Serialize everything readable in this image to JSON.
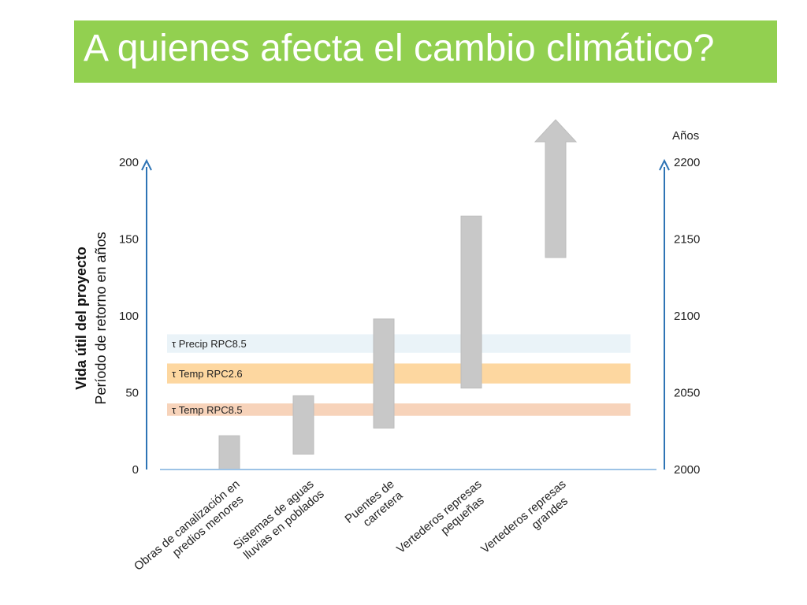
{
  "title": "A quienes afecta el cambio climático?",
  "colors": {
    "title_bg": "#92d050",
    "axis": "#2e74b5",
    "bar": "#c8c8c8",
    "baseline": "#9dc3e6"
  },
  "chart_data": {
    "type": "bar",
    "left_axis": {
      "title_bold": "Vida útil del proyecto",
      "title": "Período de retorno en años",
      "range": [
        0,
        200
      ],
      "ticks": [
        0,
        50,
        100,
        150,
        200
      ]
    },
    "right_axis": {
      "title": "Años",
      "range": [
        2000,
        2200
      ],
      "ticks": [
        2000,
        2050,
        2100,
        2150,
        2200
      ]
    },
    "bands": [
      {
        "label": "τ Precip RPC8.5",
        "from": 76,
        "to": 88,
        "color": "#eaf3f8"
      },
      {
        "label": "τ Temp RPC2.6",
        "from": 56,
        "to": 69,
        "color": "#fdd7a0"
      },
      {
        "label": "τ Temp RPC8.5",
        "from": 35,
        "to": 43,
        "color": "#f7d3ba"
      }
    ],
    "categories": [
      {
        "label_lines": [
          "Obras de canalización en",
          "predios menores"
        ],
        "low": 0,
        "high": 22,
        "open_ended": false
      },
      {
        "label_lines": [
          "Sistemas de aguas",
          "lluvias en poblados"
        ],
        "low": 10,
        "high": 48,
        "open_ended": false
      },
      {
        "label_lines": [
          "Puentes de",
          "carretera"
        ],
        "low": 27,
        "high": 98,
        "open_ended": false
      },
      {
        "label_lines": [
          "Vertederos represas",
          "pequeñas"
        ],
        "low": 53,
        "high": 165,
        "open_ended": false
      },
      {
        "label_lines": [
          "Vertederos represas",
          "grandes"
        ],
        "low": 138,
        "high": 218,
        "open_ended": true
      }
    ]
  }
}
